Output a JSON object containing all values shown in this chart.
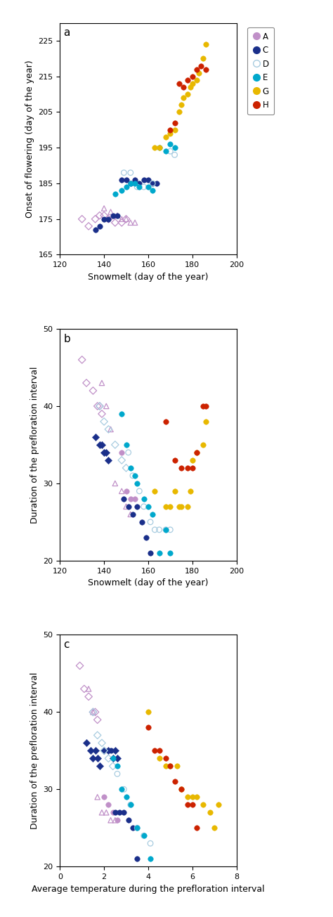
{
  "colors": {
    "A": "#c090c8",
    "C": "#1a2f8a",
    "D": "#a8cce0",
    "E": "#00a8cc",
    "G": "#e8b800",
    "H": "#cc2200"
  },
  "panel_a": {
    "title": "a",
    "xlabel": "Snowmelt (day of the year)",
    "ylabel": "Onset of flowering (day of the year)",
    "xlim": [
      120,
      200
    ],
    "ylim": [
      165,
      230
    ],
    "xticks": [
      120,
      140,
      160,
      180,
      200
    ],
    "yticks": [
      165,
      175,
      185,
      195,
      205,
      215,
      225
    ],
    "A_dia": {
      "x": [
        130,
        133,
        136,
        138,
        140,
        142,
        145,
        148,
        150
      ],
      "y": [
        175,
        173,
        175,
        176,
        176,
        175,
        174,
        174,
        175
      ]
    },
    "A_tri": {
      "x": [
        140,
        143,
        146,
        148,
        150,
        152,
        154
      ],
      "y": [
        178,
        177,
        176,
        175,
        175,
        174,
        174
      ]
    },
    "C": {
      "x": [
        136,
        138,
        140,
        142,
        144,
        146,
        148,
        150,
        152,
        154,
        156,
        158,
        160,
        162,
        164
      ],
      "y": [
        172,
        173,
        175,
        175,
        176,
        176,
        186,
        186,
        185,
        186,
        185,
        186,
        186,
        185,
        185
      ]
    },
    "D": {
      "x": [
        149,
        152,
        155,
        158,
        162,
        170,
        172
      ],
      "y": [
        188,
        188,
        184,
        184,
        185,
        194,
        193
      ]
    },
    "E": {
      "x": [
        145,
        148,
        150,
        152,
        154,
        156,
        160,
        162,
        165,
        168,
        170,
        172
      ],
      "y": [
        182,
        183,
        184,
        185,
        185,
        184,
        184,
        183,
        195,
        194,
        196,
        195
      ]
    },
    "G": {
      "x": [
        163,
        165,
        168,
        170,
        172,
        174,
        175,
        176,
        178,
        179,
        180,
        182,
        183,
        185,
        186
      ],
      "y": [
        195,
        195,
        198,
        199,
        200,
        205,
        207,
        209,
        210,
        212,
        213,
        214,
        216,
        220,
        224
      ]
    },
    "H": {
      "x": [
        170,
        172,
        174,
        176,
        178,
        180,
        182,
        184,
        186
      ],
      "y": [
        200,
        202,
        213,
        212,
        214,
        215,
        217,
        218,
        217
      ]
    }
  },
  "panel_b": {
    "title": "b",
    "xlabel": "Snowmelt (day of the year)",
    "ylabel": "Duration of the prefloration interval",
    "xlim": [
      120,
      200
    ],
    "ylim": [
      20,
      50
    ],
    "xticks": [
      120,
      140,
      160,
      180,
      200
    ],
    "yticks": [
      20,
      30,
      40,
      50
    ],
    "A_dia": {
      "x": [
        130,
        132,
        135,
        137,
        138,
        139
      ],
      "y": [
        46,
        43,
        42,
        40,
        40,
        39
      ]
    },
    "A_tri": {
      "x": [
        139,
        141,
        143,
        145,
        148,
        150,
        152
      ],
      "y": [
        43,
        40,
        37,
        30,
        29,
        27,
        26
      ]
    },
    "A_circ": {
      "x": [
        148,
        150,
        152,
        154
      ],
      "y": [
        34,
        29,
        28,
        28
      ]
    },
    "C_dia": {
      "x": [
        136,
        138,
        139,
        140,
        141,
        142
      ],
      "y": [
        36,
        35,
        35,
        34,
        34,
        33
      ]
    },
    "C_circ": {
      "x": [
        149,
        151,
        153,
        155,
        157,
        159,
        161
      ],
      "y": [
        28,
        27,
        26,
        27,
        25,
        23,
        21
      ]
    },
    "D_dia": {
      "x": [
        138,
        140,
        142,
        145,
        148,
        150
      ],
      "y": [
        40,
        38,
        37,
        35,
        33,
        32
      ]
    },
    "D_circ": {
      "x": [
        151,
        153,
        156,
        158,
        161,
        163,
        165,
        168,
        170
      ],
      "y": [
        34,
        31,
        29,
        27,
        25,
        24,
        24,
        24,
        24
      ]
    },
    "E_circ": {
      "x": [
        148,
        150,
        152,
        154,
        155,
        158,
        160,
        162,
        165,
        168,
        170
      ],
      "y": [
        39,
        35,
        32,
        31,
        30,
        28,
        27,
        26,
        21,
        24,
        21
      ]
    },
    "G": {
      "x": [
        163,
        168,
        170,
        172,
        174,
        175,
        178,
        179,
        180,
        182,
        185,
        186
      ],
      "y": [
        29,
        27,
        27,
        29,
        27,
        27,
        27,
        29,
        33,
        34,
        35,
        38
      ]
    },
    "H": {
      "x": [
        168,
        172,
        175,
        178,
        180,
        182,
        185,
        186
      ],
      "y": [
        38,
        33,
        32,
        32,
        32,
        34,
        40,
        40
      ]
    }
  },
  "panel_c": {
    "title": "c",
    "xlabel": "Average temperature during the prefloration interval",
    "ylabel": "Duration of the prefloration interval",
    "xlim": [
      0,
      8
    ],
    "ylim": [
      20,
      50
    ],
    "xticks": [
      0,
      2,
      4,
      6,
      8
    ],
    "yticks": [
      20,
      30,
      40,
      50
    ],
    "A_dia": {
      "x": [
        0.9,
        1.1,
        1.3,
        1.5,
        1.6,
        1.7
      ],
      "y": [
        46,
        43,
        42,
        40,
        40,
        39
      ]
    },
    "A_tri": {
      "x": [
        1.3,
        1.5,
        1.7,
        1.9,
        2.1,
        2.3,
        2.5
      ],
      "y": [
        43,
        40,
        29,
        27,
        27,
        26,
        26
      ]
    },
    "A_circ": {
      "x": [
        2.0,
        2.2,
        2.4,
        2.6
      ],
      "y": [
        29,
        28,
        27,
        26
      ]
    },
    "C_dia": {
      "x": [
        1.2,
        1.4,
        1.5,
        1.6,
        1.7,
        1.8,
        2.0,
        2.2,
        2.4,
        2.5,
        2.6
      ],
      "y": [
        36,
        35,
        34,
        35,
        34,
        33,
        35,
        35,
        34,
        35,
        34
      ]
    },
    "C_circ": {
      "x": [
        2.3,
        2.5,
        2.7,
        2.9,
        3.1,
        3.3,
        3.5
      ],
      "y": [
        35,
        27,
        27,
        27,
        26,
        25,
        21
      ]
    },
    "D_dia": {
      "x": [
        1.5,
        1.7,
        1.9,
        2.0,
        2.2,
        2.4
      ],
      "y": [
        40,
        37,
        36,
        35,
        34,
        33
      ]
    },
    "D_circ": {
      "x": [
        2.6,
        2.9,
        3.2,
        3.5,
        3.8,
        4.1
      ],
      "y": [
        32,
        30,
        28,
        25,
        24,
        23
      ]
    },
    "E_circ": {
      "x": [
        2.4,
        2.6,
        2.8,
        3.0,
        3.2,
        3.5,
        3.8,
        4.1
      ],
      "y": [
        34,
        33,
        30,
        29,
        28,
        25,
        24,
        21
      ]
    },
    "G": {
      "x": [
        4.0,
        4.5,
        4.8,
        5.0,
        5.3,
        5.5,
        5.8,
        6.0,
        6.2,
        6.5,
        6.8,
        7.0,
        7.2
      ],
      "y": [
        40,
        34,
        33,
        33,
        33,
        30,
        29,
        29,
        29,
        28,
        27,
        25,
        28
      ]
    },
    "H": {
      "x": [
        4.0,
        4.3,
        4.5,
        4.8,
        5.0,
        5.2,
        5.5,
        5.8,
        6.0,
        6.2
      ],
      "y": [
        38,
        35,
        35,
        34,
        33,
        31,
        30,
        28,
        28,
        25
      ]
    }
  },
  "legend": {
    "labels": [
      "A",
      "C",
      "D",
      "E",
      "G",
      "H"
    ]
  }
}
